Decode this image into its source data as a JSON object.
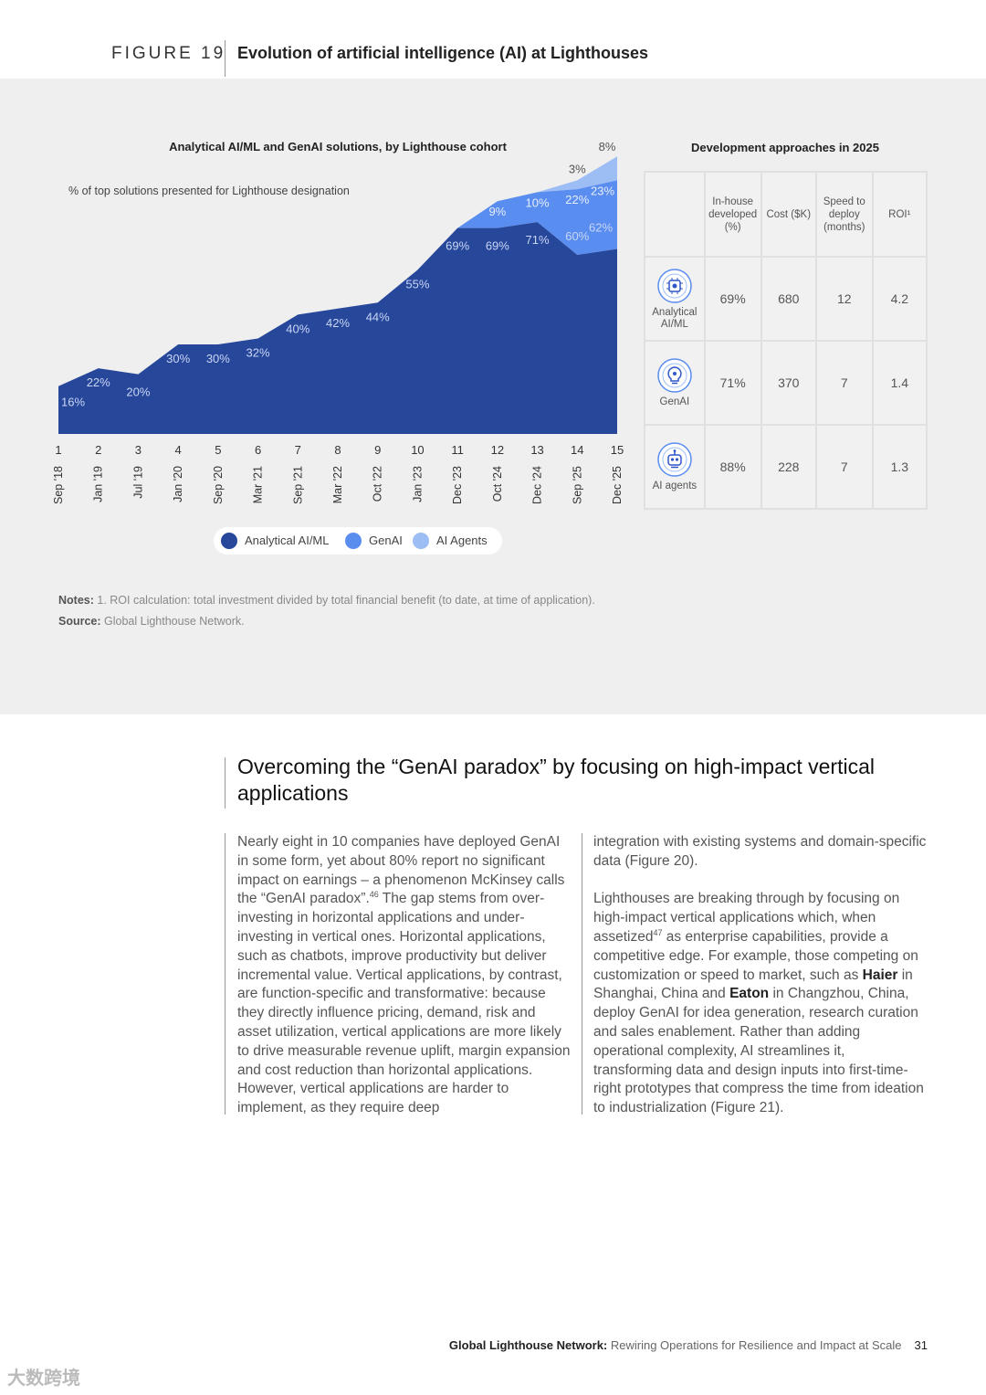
{
  "figure": {
    "number": "FIGURE 19",
    "title": "Evolution of artificial intelligence (AI) at Lighthouses"
  },
  "chart_title": "Analytical AI/ML and GenAI solutions, by Lighthouse cohort",
  "y_caption": "% of top solutions presented for Lighthouse designation",
  "colors": {
    "analytical": "#27479b",
    "genai": "#5a8df0",
    "agents": "#9dbdf5",
    "panel": "#efefef"
  },
  "chart_data": {
    "type": "area",
    "title": "Analytical AI/ML and GenAI solutions, by Lighthouse cohort",
    "ylabel": "% of top solutions presented for Lighthouse designation",
    "ylim": [
      0,
      90
    ],
    "cohorts": [
      "1",
      "2",
      "3",
      "4",
      "5",
      "6",
      "7",
      "8",
      "9",
      "10",
      "11",
      "12",
      "13",
      "14",
      "15"
    ],
    "dates": [
      "Sep '18",
      "Jan '19",
      "Jul '19",
      "Jan '20",
      "Sep '20",
      "Mar '21",
      "Sep '21",
      "Mar '22",
      "Oct '22",
      "Jan '23",
      "Dec '23",
      "Oct '24",
      "Dec '24",
      "Sep '25",
      "Dec '25"
    ],
    "series": [
      {
        "name": "Analytical AI/ML",
        "values": [
          16,
          22,
          20,
          30,
          30,
          32,
          40,
          42,
          44,
          55,
          69,
          69,
          71,
          60,
          62
        ],
        "labels": [
          "16%",
          "22%",
          "20%",
          "30%",
          "30%",
          "32%",
          "40%",
          "42%",
          "44%",
          "55%",
          "69%",
          "69%",
          "71%",
          "60%",
          "62%"
        ]
      },
      {
        "name": "GenAI",
        "values": [
          0,
          0,
          0,
          0,
          0,
          0,
          0,
          0,
          0,
          0,
          0,
          9,
          10,
          22,
          23
        ],
        "labels": [
          "",
          "",
          "",
          "",
          "",
          "",
          "",
          "",
          "",
          "",
          "",
          "9%",
          "10%",
          "22%",
          "23%"
        ]
      },
      {
        "name": "AI Agents",
        "values": [
          0,
          0,
          0,
          0,
          0,
          0,
          0,
          0,
          0,
          0,
          0,
          0,
          0,
          3,
          8
        ],
        "labels": [
          "",
          "",
          "",
          "",
          "",
          "",
          "",
          "",
          "",
          "",
          "",
          "",
          "",
          "3%",
          "8%"
        ]
      }
    ],
    "legend": [
      "Analytical AI/ML",
      "GenAI",
      "AI Agents"
    ],
    "legend_position": "bottom"
  },
  "notes": {
    "notes_label": "Notes:",
    "notes_text": " 1. ROI calculation: total investment divided by total financial benefit (to date, at time of application).",
    "source_label": "Source:",
    "source_text": " Global Lighthouse Network."
  },
  "table": {
    "title": "Development approaches in 2025",
    "headers": [
      "In-house developed (%)",
      "Cost ($K)",
      "Speed to deploy (months)",
      "ROI¹"
    ],
    "rows": [
      {
        "label": "Analytical AI/ML",
        "icon": "analytics-chip-icon",
        "inhouse": "69%",
        "cost": "680",
        "speed": "12",
        "roi": "4.2"
      },
      {
        "label": "GenAI",
        "icon": "genai-bulb-icon",
        "inhouse": "71%",
        "cost": "370",
        "speed": "7",
        "roi": "1.4"
      },
      {
        "label": "AI agents",
        "icon": "robot-agent-icon",
        "inhouse": "88%",
        "cost": "228",
        "speed": "7",
        "roi": "1.3"
      }
    ]
  },
  "article": {
    "title": "Overcoming the “GenAI paradox” by focusing on high-impact vertical applications",
    "left_p1_a": "Nearly eight in 10 companies have deployed GenAI in some form, yet about 80% report no significant impact on earnings – a phenomenon McKinsey calls the “GenAI paradox”.",
    "left_p1_sup": "46",
    "left_p1_b": " The gap stems from over-investing in horizontal applications and under-investing in vertical ones. Horizontal applications, such as chatbots, improve productivity but deliver incremental value. Vertical applications, by contrast, are function-specific and transformative: because they directly influence pricing, demand, risk and asset utilization, vertical applications are more likely to drive measurable revenue uplift, margin expansion and cost reduction than horizontal applications. However, vertical applications are harder to implement, as they require deep",
    "right_p1": "integration with existing systems and domain-specific data (Figure 20).",
    "right_p2_a": "Lighthouses are breaking through by focusing on high-impact vertical applications which, when assetized",
    "right_p2_sup": "47",
    "right_p2_b": " as enterprise capabilities, provide a competitive edge. For example, those competing on customization or speed to market, such as ",
    "right_p2_haier": "Haier",
    "right_p2_c": " in Shanghai, China and ",
    "right_p2_eaton": "Eaton",
    "right_p2_d": " in Changzhou, China, deploy GenAI for idea generation, research curation and sales enablement. Rather than adding operational complexity, AI streamlines it, transforming data and design inputs into first-time-right prototypes that compress the time from ideation to industrialization (Figure 21)."
  },
  "footer": {
    "publisher": "Global Lighthouse Network:",
    "report": " Rewiring Operations for Resilience and Impact at Scale",
    "page": "31"
  },
  "watermark": "大数跨境"
}
